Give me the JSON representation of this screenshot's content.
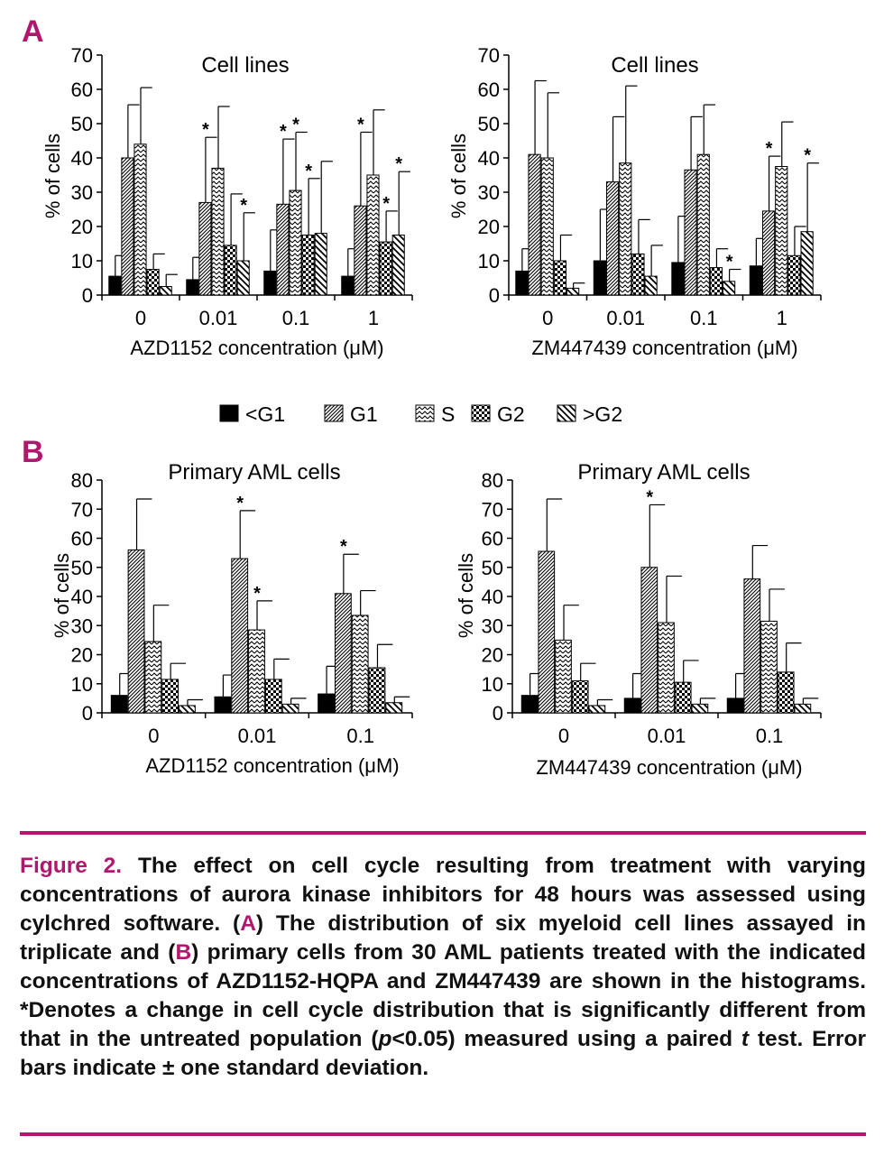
{
  "colors": {
    "accent": "#b0186e",
    "text": "#111111"
  },
  "legend": [
    {
      "name": "<G1",
      "pattern": "solid"
    },
    {
      "name": "G1",
      "pattern": "diag-dense"
    },
    {
      "name": "S",
      "pattern": "zigzag"
    },
    {
      "name": "G2",
      "pattern": "checker"
    },
    {
      "name": ">G2",
      "pattern": "diag-sparse"
    }
  ],
  "chart_data": [
    {
      "panel": "A",
      "type": "bar",
      "title": "Cell lines",
      "xlabel": "AZD1152 concentration (μM)",
      "ylabel": "% of cells",
      "ylim": [
        0,
        70
      ],
      "yticks": [
        0,
        10,
        20,
        30,
        40,
        50,
        60,
        70
      ],
      "categories": [
        "0",
        "0.01",
        "0.1",
        "1"
      ],
      "series": [
        {
          "name": "<G1",
          "values": [
            5.5,
            4.5,
            7,
            5.5
          ],
          "errors": [
            6,
            6.5,
            12,
            8
          ],
          "sig": [
            false,
            false,
            false,
            false
          ]
        },
        {
          "name": "G1",
          "values": [
            40,
            27,
            26.5,
            26
          ],
          "errors": [
            15.5,
            19,
            19,
            21.5
          ],
          "sig": [
            false,
            true,
            true,
            true
          ]
        },
        {
          "name": "S",
          "values": [
            44,
            37,
            30.5,
            35
          ],
          "errors": [
            16.5,
            18,
            17,
            19
          ],
          "sig": [
            false,
            false,
            true,
            false
          ]
        },
        {
          "name": "G2",
          "values": [
            7.5,
            14.5,
            17.5,
            15.5
          ],
          "errors": [
            4.5,
            15,
            16.5,
            9
          ],
          "sig": [
            false,
            false,
            true,
            true
          ]
        },
        {
          "name": ">G2",
          "values": [
            2.5,
            10,
            18,
            17.5
          ],
          "errors": [
            3.5,
            14,
            21,
            18.5
          ],
          "sig": [
            false,
            true,
            false,
            true
          ]
        }
      ]
    },
    {
      "panel": "A",
      "type": "bar",
      "title": "Cell lines",
      "xlabel": "ZM447439 concentration (μM)",
      "ylabel": "% of cells",
      "ylim": [
        0,
        70
      ],
      "yticks": [
        0,
        10,
        20,
        30,
        40,
        50,
        60,
        70
      ],
      "categories": [
        "0",
        "0.01",
        "0.1",
        "1"
      ],
      "series": [
        {
          "name": "<G1",
          "values": [
            7,
            10,
            9.5,
            8.5
          ],
          "errors": [
            6.5,
            15,
            13.5,
            8
          ],
          "sig": [
            false,
            false,
            false,
            false
          ]
        },
        {
          "name": "G1",
          "values": [
            41,
            33,
            36.5,
            24.5
          ],
          "errors": [
            21.5,
            19,
            15.5,
            16
          ],
          "sig": [
            false,
            false,
            false,
            true
          ]
        },
        {
          "name": "S",
          "values": [
            40,
            38.5,
            41,
            37.5
          ],
          "errors": [
            19,
            22.5,
            14.5,
            13
          ],
          "sig": [
            false,
            false,
            false,
            false
          ]
        },
        {
          "name": "G2",
          "values": [
            10,
            12,
            8,
            11.5
          ],
          "errors": [
            7.5,
            10,
            5.5,
            8.5
          ],
          "sig": [
            false,
            false,
            false,
            false
          ]
        },
        {
          "name": ">G2",
          "values": [
            2,
            5.5,
            4,
            18.5
          ],
          "errors": [
            1.5,
            9,
            3.5,
            20
          ],
          "sig": [
            false,
            false,
            true,
            true
          ]
        }
      ]
    },
    {
      "panel": "B",
      "type": "bar",
      "title": "Primary AML cells",
      "xlabel": "AZD1152 concentration (μM)",
      "ylabel": "% of cells",
      "ylim": [
        0,
        80
      ],
      "yticks": [
        0,
        10,
        20,
        30,
        40,
        50,
        60,
        70,
        80
      ],
      "categories": [
        "0",
        "0.01",
        "0.1"
      ],
      "series": [
        {
          "name": "<G1",
          "values": [
            6,
            5.5,
            6.5
          ],
          "errors": [
            7.5,
            7.5,
            9.5
          ],
          "sig": [
            false,
            false,
            false
          ]
        },
        {
          "name": "G1",
          "values": [
            56,
            53,
            41
          ],
          "errors": [
            17.5,
            16.5,
            13.5
          ],
          "sig": [
            false,
            true,
            true
          ]
        },
        {
          "name": "S",
          "values": [
            24.5,
            28.5,
            33.5
          ],
          "errors": [
            12.5,
            10,
            8.5
          ],
          "sig": [
            false,
            true,
            false
          ]
        },
        {
          "name": "G2",
          "values": [
            11.5,
            11.5,
            15.5
          ],
          "errors": [
            5.5,
            7,
            8
          ],
          "sig": [
            false,
            false,
            false
          ]
        },
        {
          "name": ">G2",
          "values": [
            2.5,
            3,
            3.5
          ],
          "errors": [
            2,
            2,
            2
          ],
          "sig": [
            false,
            false,
            false
          ]
        }
      ]
    },
    {
      "panel": "B",
      "type": "bar",
      "title": "Primary AML cells",
      "xlabel": "ZM447439 concentration (μM)",
      "ylabel": "% of cells",
      "ylim": [
        0,
        80
      ],
      "yticks": [
        0,
        10,
        20,
        30,
        40,
        50,
        60,
        70,
        80
      ],
      "categories": [
        "0",
        "0.01",
        "0.1"
      ],
      "series": [
        {
          "name": "<G1",
          "values": [
            6,
            5,
            5
          ],
          "errors": [
            7.5,
            8.5,
            8.5
          ],
          "sig": [
            false,
            false,
            false
          ]
        },
        {
          "name": "G1",
          "values": [
            55.5,
            50,
            46
          ],
          "errors": [
            18,
            21.5,
            11.5
          ],
          "sig": [
            false,
            true,
            false
          ]
        },
        {
          "name": "S",
          "values": [
            25,
            31,
            31.5
          ],
          "errors": [
            12,
            16,
            11
          ],
          "sig": [
            false,
            false,
            false
          ]
        },
        {
          "name": "G2",
          "values": [
            11,
            10.5,
            14
          ],
          "errors": [
            6,
            7.5,
            10
          ],
          "sig": [
            false,
            false,
            false
          ]
        },
        {
          "name": ">G2",
          "values": [
            2.5,
            3,
            3
          ],
          "errors": [
            2,
            2,
            2
          ],
          "sig": [
            false,
            false,
            false
          ]
        }
      ]
    }
  ],
  "caption": {
    "fig_label": "Figure 2.",
    "s1": " The effect on cell cycle resulting from treatment with varying concentrations of aurora kinase inhibitors for 48 hours was assessed using cylchred software. (",
    "a": "A",
    "s2": ") The distribution of six myeloid cell lines assayed in triplicate and (",
    "b": "B",
    "s3": ") primary cells from 30 AML patients treated with the indicated concentrations of AZD1152-HQPA and ZM447439 are shown in the histograms. *Denotes a change in cell cycle distribution that is significantly different from that in the untreated population (",
    "p": "p",
    "s4": "<0.05) measured using a paired ",
    "t": "t",
    "s5": " test. Error bars indicate ± one standard deviation."
  }
}
